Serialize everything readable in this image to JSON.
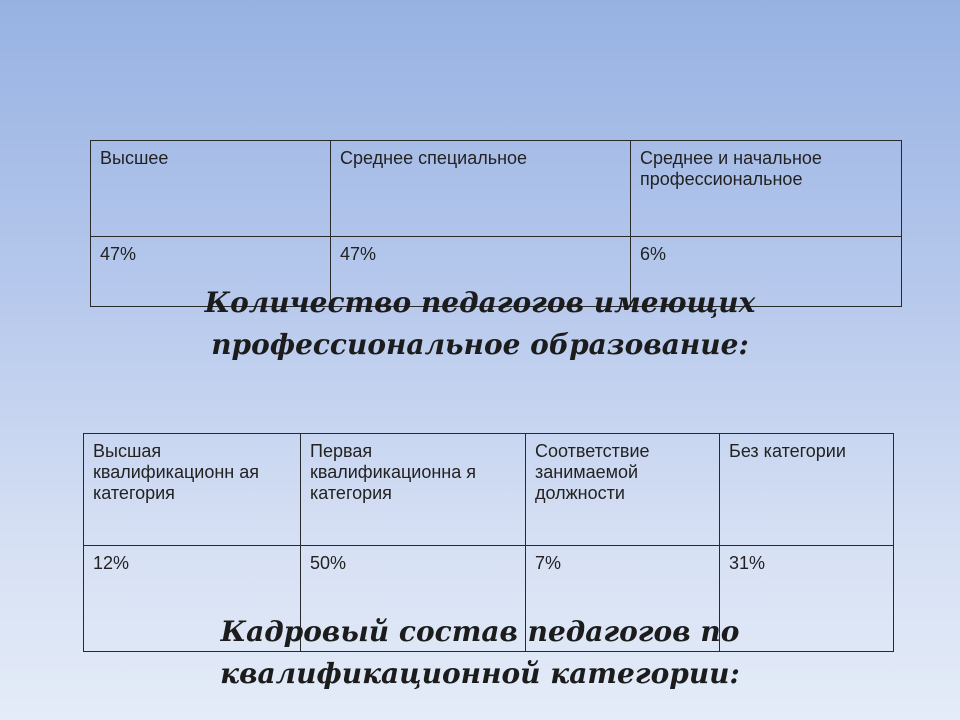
{
  "table_education": {
    "headers": [
      "Высшее",
      "Среднее специальное",
      "Среднее и начальное профессиональное"
    ],
    "values": [
      "47%",
      "47%",
      "6%"
    ]
  },
  "caption_education": {
    "line1": "Количество педагогов имеющих",
    "line2": "профессиональное образование:"
  },
  "table_qualification": {
    "headers": [
      "Высшая квалификационн ая категория",
      "Первая квалификационна я категория",
      "Соответствие занимаемой должности",
      "Без категории"
    ],
    "values": [
      "12%",
      "50%",
      "7%",
      "31%"
    ]
  },
  "caption_qualification": {
    "line1": "Кадровый состав педагогов по",
    "line2": "квалификационной категории:"
  }
}
